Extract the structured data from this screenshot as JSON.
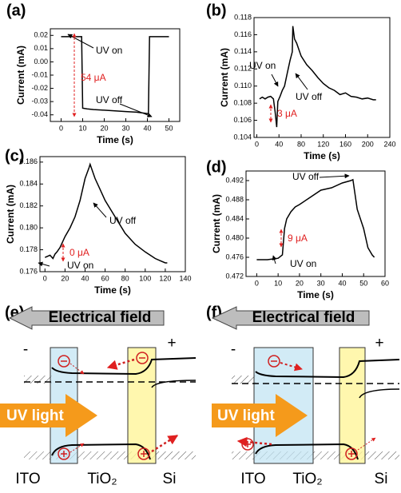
{
  "chart_data": [
    {
      "type": "line",
      "label": "(a)",
      "xlabel": "Time (s)",
      "ylabel": "Current (mA)",
      "color": "#000000",
      "x": [
        0,
        5,
        9.5,
        10,
        12,
        15,
        20,
        25,
        30,
        35,
        40,
        40.5,
        41,
        45,
        50
      ],
      "values": [
        0.019,
        0.019,
        0.019,
        -0.035,
        -0.0355,
        -0.036,
        -0.0365,
        -0.037,
        -0.0375,
        -0.038,
        -0.039,
        -0.039,
        0.019,
        0.019,
        0.019
      ],
      "xlim": [
        -5,
        55
      ],
      "xticks": [
        0,
        10,
        20,
        30,
        40,
        50
      ],
      "ylim": [
        -0.045,
        0.025
      ],
      "yticks": [
        -0.04,
        -0.03,
        -0.02,
        -0.01,
        {
          "value": 0,
          "label": "0.00"
        },
        0.01,
        0.02
      ],
      "annotations": [
        "UV on",
        "54 μA",
        "UV off"
      ]
    },
    {
      "type": "line",
      "label": "(b)",
      "xlabel": "Time (s)",
      "ylabel": "Current (mA)",
      "color": "#000000",
      "x": [
        5,
        10,
        15,
        20,
        25,
        30,
        33,
        36,
        38,
        42,
        46,
        50,
        55,
        60,
        64,
        65,
        68,
        72,
        80,
        90,
        100,
        110,
        120,
        130,
        140,
        150,
        160,
        170,
        180,
        190,
        200,
        210,
        215
      ],
      "values": [
        0.1085,
        0.1087,
        0.1085,
        0.1087,
        0.1088,
        0.1085,
        0.107,
        0.1052,
        0.1082,
        0.1088,
        0.1095,
        0.11,
        0.1115,
        0.113,
        0.114,
        0.117,
        0.1155,
        0.115,
        0.1135,
        0.1125,
        0.1118,
        0.111,
        0.1103,
        0.1098,
        0.1095,
        0.109,
        0.1092,
        0.1088,
        0.1087,
        0.1085,
        0.1086,
        0.1084,
        0.1084
      ],
      "xlim": [
        -5,
        240
      ],
      "xticks": [
        0,
        40,
        80,
        120,
        160,
        200,
        240
      ],
      "ylim": [
        0.104,
        0.118
      ],
      "yticks": [
        0.104,
        0.106,
        0.108,
        {
          "value": 0.11,
          "label": "0.110"
        },
        0.112,
        0.114,
        0.116,
        0.118
      ],
      "annotations": [
        "UV on",
        "UV off",
        "3 μA"
      ]
    },
    {
      "type": "line",
      "label": "(c)",
      "xlabel": "Time (s)",
      "ylabel": "Current (mA)",
      "color": "#000000",
      "x": [
        0,
        5,
        8,
        10,
        12,
        15,
        20,
        25,
        30,
        35,
        40,
        44,
        45,
        50,
        55,
        60,
        70,
        80,
        90,
        100,
        110,
        115,
        120,
        122
      ],
      "values": [
        0.1773,
        0.1775,
        0.1772,
        0.1776,
        0.1778,
        0.1782,
        0.1792,
        0.18,
        0.181,
        0.1825,
        0.1845,
        0.1855,
        0.1858,
        0.1845,
        0.1835,
        0.1825,
        0.181,
        0.1795,
        0.1785,
        0.1778,
        0.1772,
        0.177,
        0.1768,
        0.1768
      ],
      "xlim": [
        -5,
        140
      ],
      "xticks": [
        0,
        20,
        40,
        60,
        80,
        100,
        120,
        140
      ],
      "ylim": [
        0.176,
        0.1865
      ],
      "yticks": [
        0.176,
        0.178,
        {
          "value": 0.18,
          "label": "0.180"
        },
        0.182,
        0.184,
        0.186
      ],
      "annotations": [
        "UV off",
        "0 μA",
        "UV on"
      ]
    },
    {
      "type": "line",
      "label": "(d)",
      "xlabel": "Time (s)",
      "ylabel": "Current (mA)",
      "color": "#000000",
      "x": [
        0,
        5,
        10,
        12,
        13,
        14,
        16,
        18,
        20,
        25,
        30,
        35,
        40,
        44,
        45,
        47,
        50,
        52,
        54,
        55
      ],
      "values": [
        0.4755,
        0.4755,
        0.4758,
        0.4765,
        0.482,
        0.484,
        0.4855,
        0.4865,
        0.487,
        0.4885,
        0.49,
        0.4905,
        0.4915,
        0.492,
        0.4922,
        0.486,
        0.482,
        0.478,
        0.4765,
        0.476
      ],
      "xlim": [
        -5,
        60
      ],
      "xticks": [
        0,
        10,
        20,
        30,
        40,
        50,
        60
      ],
      "ylim": [
        0.472,
        0.494
      ],
      "yticks": [
        0.472,
        0.476,
        {
          "value": 0.48,
          "label": "0.480"
        },
        0.484,
        0.488,
        0.492
      ],
      "annotations": [
        "UV off",
        "9 μA",
        "UV on"
      ]
    }
  ],
  "diagrams": [
    {
      "label": "(e)",
      "field": "Electrical field",
      "minus": "-",
      "plus": "+",
      "light": "UV light",
      "layers": [
        "ITO",
        "TiO₂",
        "Si"
      ]
    },
    {
      "label": "(f)",
      "field": "Electrical field",
      "minus": "-",
      "plus": "+",
      "light": "UV light",
      "layers": [
        "ITO",
        "TiO₂",
        "Si"
      ]
    }
  ]
}
